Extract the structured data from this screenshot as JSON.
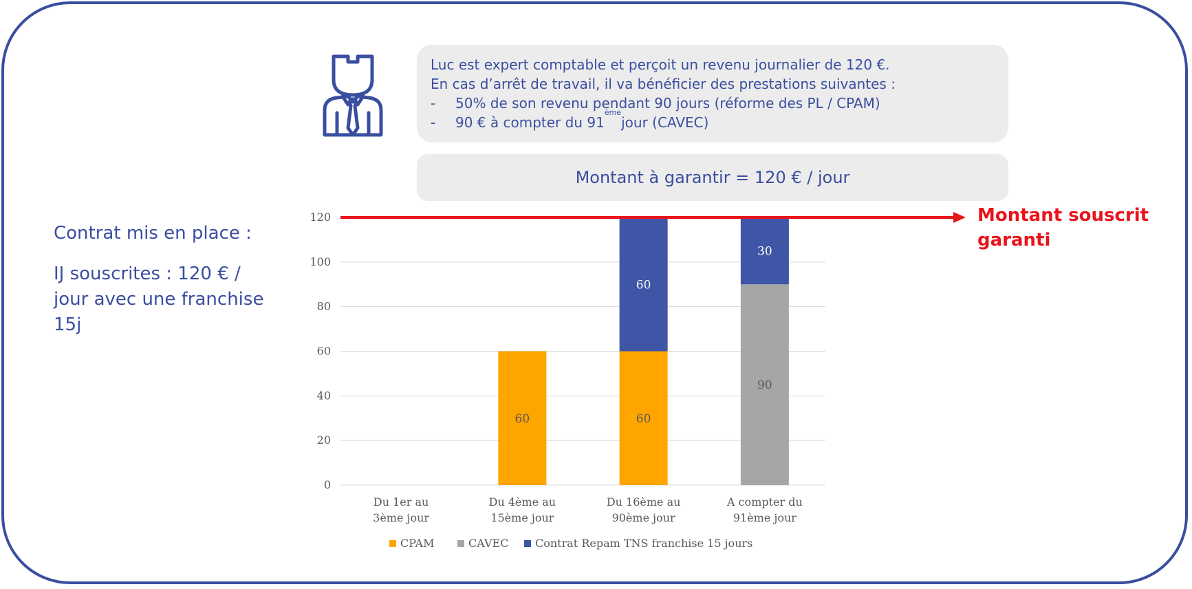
{
  "info": {
    "line1": "Luc est expert comptable et perçoit un revenu journalier de 120 €.",
    "line2": "En cas d’arrêt de travail, il va bénéficier des prestations suivantes :",
    "bullet1": "50% de son revenu pendant 90 jours (réforme des PL / CPAM)",
    "bullet2_pre": "90 € à compter du 91",
    "bullet2_sup": "ème",
    "bullet2_post": " jour (CAVEC)"
  },
  "amount_box": "Montant à garantir =  120 € / jour",
  "contract": {
    "title": "Contrat mis en place :",
    "description": "IJ souscrites : 120 € / jour avec une franchise 15j"
  },
  "guarantee": {
    "line1": "Montant souscrit",
    "line2": "garanti",
    "value": 120,
    "color": "#e8141c"
  },
  "colors": {
    "brand": "#3a4ea0",
    "box": "#ececec"
  },
  "icons": [
    "person-with-tie-icon",
    "arrow-right-icon"
  ],
  "chart_data": {
    "type": "bar",
    "stacked": true,
    "categories": [
      [
        "Du 1er au",
        "3ème jour"
      ],
      [
        "Du 4ème au",
        "15ème jour"
      ],
      [
        "Du 16ème au",
        "90ème jour"
      ],
      [
        "A compter du",
        "91ème jour"
      ]
    ],
    "series": [
      {
        "name": "CPAM",
        "color": "#ffa500",
        "values": [
          0,
          60,
          60,
          0
        ]
      },
      {
        "name": "CAVEC",
        "color": "#a6a6a6",
        "values": [
          0,
          0,
          0,
          90
        ]
      },
      {
        "name": "Contrat Repam TNS franchise 15 jours",
        "color": "#3f55a6",
        "values": [
          0,
          0,
          60,
          30
        ]
      }
    ],
    "ylim": [
      0,
      120
    ],
    "yticks": [
      0,
      20,
      40,
      60,
      80,
      100,
      120
    ],
    "grid": true,
    "legend": "bottom",
    "data_labels": true
  }
}
